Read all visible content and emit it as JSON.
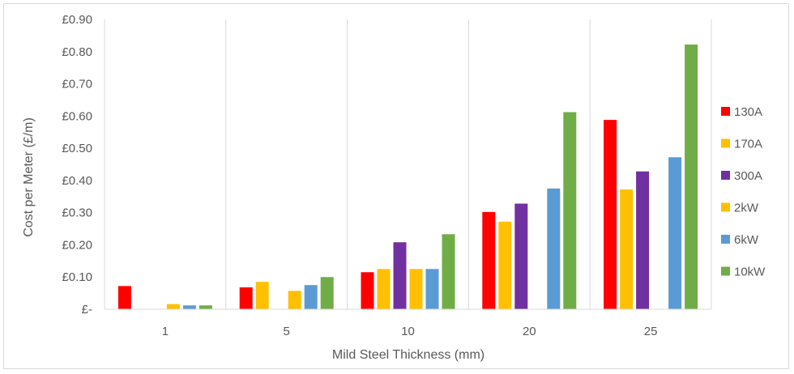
{
  "chart_data": {
    "type": "bar",
    "title": "",
    "xlabel": "Mild Steel Thickness (mm)",
    "ylabel": "Cost per Meter (£/m)",
    "categories": [
      "1",
      "5",
      "10",
      "20",
      "25"
    ],
    "ylim": [
      0,
      0.9
    ],
    "yticks": [
      {
        "value": 0,
        "label": "£-"
      },
      {
        "value": 0.1,
        "label": "£0.10"
      },
      {
        "value": 0.2,
        "label": "£0.20"
      },
      {
        "value": 0.3,
        "label": "£0.30"
      },
      {
        "value": 0.4,
        "label": "£0.40"
      },
      {
        "value": 0.5,
        "label": "£0.50"
      },
      {
        "value": 0.6,
        "label": "£0.60"
      },
      {
        "value": 0.7,
        "label": "£0.70"
      },
      {
        "value": 0.8,
        "label": "£0.80"
      },
      {
        "value": 0.9,
        "label": "£0.90"
      }
    ],
    "grid": "vertical",
    "legend_position": "right",
    "series": [
      {
        "name": "130A",
        "color": "#ff0000",
        "values": [
          0.072,
          0.068,
          0.115,
          0.302,
          0.588
        ]
      },
      {
        "name": "170A",
        "color": "#ffc000",
        "values": [
          null,
          0.085,
          0.125,
          0.272,
          0.372
        ]
      },
      {
        "name": "300A",
        "color": "#7030a0",
        "values": [
          null,
          null,
          0.208,
          0.328,
          0.428
        ]
      },
      {
        "name": "2kW",
        "color": "#ffc000",
        "values": [
          0.016,
          0.057,
          0.125,
          null,
          null
        ]
      },
      {
        "name": "6kW",
        "color": "#5b9bd5",
        "values": [
          0.012,
          0.075,
          0.125,
          0.375,
          0.472
        ]
      },
      {
        "name": "10kW",
        "color": "#70ad47",
        "values": [
          0.012,
          0.1,
          0.233,
          0.612,
          0.822
        ]
      }
    ]
  }
}
